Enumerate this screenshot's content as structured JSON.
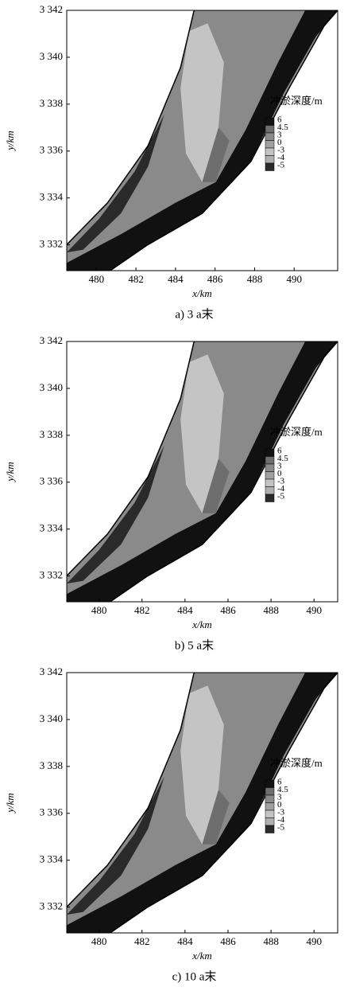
{
  "chart_data": [
    {
      "type": "contour",
      "title": "a) 3 a末",
      "x_label": "x/km",
      "y_label": "y/km",
      "xlim": [
        478.5,
        492.2
      ],
      "ylim": [
        3330.9,
        3342
      ],
      "xticks": [
        480,
        482,
        484,
        486,
        488,
        490
      ],
      "yticks": [
        {
          "value": 3332,
          "label": "3 332"
        },
        {
          "value": 3334,
          "label": "3 334"
        },
        {
          "value": 3336,
          "label": "3 336"
        },
        {
          "value": 3338,
          "label": "3 338"
        },
        {
          "value": 3340,
          "label": "3 340"
        },
        {
          "value": 3342,
          "label": "3 342"
        }
      ],
      "legend_title": "冲淤深度/m",
      "levels": [
        6,
        4.5,
        3,
        0,
        -3,
        -4,
        -5
      ],
      "level_colors": [
        "#111111",
        "#6e6e6e",
        "#8a8a8a",
        "#a0a0a0",
        "#c4c4c4",
        "#b0b0b0",
        "#2a2a2a"
      ]
    },
    {
      "type": "contour",
      "title": "b) 5 a末",
      "x_label": "x/km",
      "y_label": "y/km",
      "xlim": [
        478.5,
        491.1
      ],
      "ylim": [
        3330.9,
        3342
      ],
      "xticks": [
        480,
        482,
        484,
        486,
        488,
        490
      ],
      "yticks": [
        {
          "value": 3332,
          "label": "3 332"
        },
        {
          "value": 3334,
          "label": "3 334"
        },
        {
          "value": 3336,
          "label": "3 336"
        },
        {
          "value": 3338,
          "label": "3 338"
        },
        {
          "value": 3340,
          "label": "3 340"
        },
        {
          "value": 3342,
          "label": "3 342"
        }
      ],
      "legend_title": "冲淤深度/m",
      "levels": [
        6,
        4.5,
        3,
        0,
        -3,
        -4,
        -5
      ],
      "level_colors": [
        "#111111",
        "#6e6e6e",
        "#8a8a8a",
        "#a0a0a0",
        "#c4c4c4",
        "#b0b0b0",
        "#2a2a2a"
      ]
    },
    {
      "type": "contour",
      "title": "c) 10 a末",
      "x_label": "x/km",
      "y_label": "y/km",
      "xlim": [
        478.5,
        491.1
      ],
      "ylim": [
        3330.9,
        3342
      ],
      "xticks": [
        480,
        482,
        484,
        486,
        488,
        490
      ],
      "yticks": [
        {
          "value": 3332,
          "label": "3 332"
        },
        {
          "value": 3334,
          "label": "3 334"
        },
        {
          "value": 3336,
          "label": "3 336"
        },
        {
          "value": 3338,
          "label": "3 338"
        },
        {
          "value": 3340,
          "label": "3 340"
        },
        {
          "value": 3342,
          "label": "3 342"
        }
      ],
      "legend_title": "冲淤深度/m",
      "levels": [
        6,
        4.5,
        3,
        0,
        -3,
        -4,
        -5
      ],
      "level_colors": [
        "#111111",
        "#6e6e6e",
        "#8a8a8a",
        "#a0a0a0",
        "#c4c4c4",
        "#b0b0b0",
        "#2a2a2a"
      ]
    }
  ]
}
